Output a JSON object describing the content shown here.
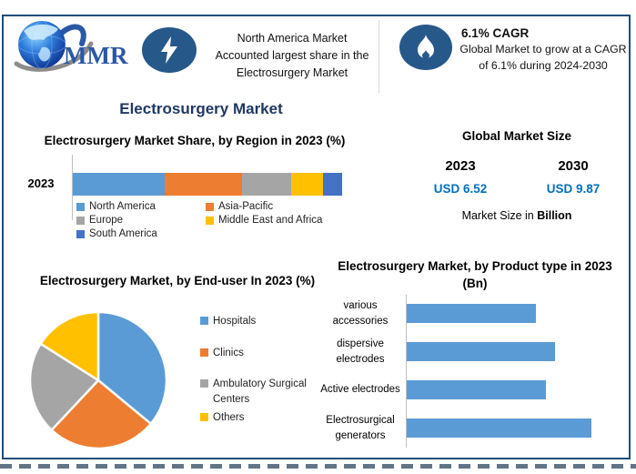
{
  "logo": {
    "text": "MMR"
  },
  "banner": {
    "highlight": {
      "lines": [
        "North America Market",
        "Accounted largest share in the",
        "Electrosurgery Market"
      ]
    },
    "cagr": {
      "title": "6.1% CAGR",
      "body": "Global Market to grow at a CAGR of 6.1% during 2024-2030"
    }
  },
  "main_title": "Electrosurgery Market",
  "market_size": {
    "title": "Global Market Size",
    "columns": [
      {
        "year": "2023",
        "value": "USD 6.52"
      },
      {
        "year": "2030",
        "value": "USD 9.87"
      }
    ],
    "note_prefix": "Market Size in ",
    "note_bold": "Billion"
  },
  "colors": {
    "frame_border": "#1F4E79",
    "title_navy": "#1F3864",
    "icon_blue": "#27588A",
    "value_blue": "#0070C0",
    "bar_blue": "#5B9BD5"
  },
  "chart_data": [
    {
      "type": "bar",
      "subtype": "stacked-horizontal",
      "title": "Electrosurgery Market Share, by Region in 2023 (%)",
      "categories": [
        "2023"
      ],
      "series": [
        {
          "name": "North America",
          "color": "#5B9BD5",
          "values": [
            34
          ]
        },
        {
          "name": "Asia-Pacific",
          "color": "#ED7D31",
          "values": [
            29
          ]
        },
        {
          "name": "Europe",
          "color": "#A5A5A5",
          "values": [
            18
          ]
        },
        {
          "name": "Middle East and Africa",
          "color": "#FFC000",
          "values": [
            12
          ]
        },
        {
          "name": "South America",
          "color": "#4472C4",
          "values": [
            7
          ]
        }
      ],
      "xlim": [
        0,
        100
      ],
      "legend_position": "bottom",
      "grid": false
    },
    {
      "type": "pie",
      "title": "Electrosurgery Market, by End-user In 2023 (%)",
      "labels": [
        "Hospitals",
        "Clinics",
        "Ambulatory Surgical Centers",
        "Others"
      ],
      "values": [
        36,
        26,
        22,
        16
      ],
      "colors": [
        "#5B9BD5",
        "#ED7D31",
        "#A5A5A5",
        "#FFC000"
      ],
      "legend_position": "right",
      "start_angle_deg": 0,
      "direction": "clockwise"
    },
    {
      "type": "bar",
      "subtype": "horizontal",
      "title": "Electrosurgery Market, by Product type in 2023 (Bn)",
      "categories": [
        "various accessories",
        "dispersive electrodes",
        "Active electrodes",
        "Electrosurgical generators"
      ],
      "values": [
        1.4,
        1.6,
        1.5,
        2.0
      ],
      "bar_color": "#5B9BD5",
      "xlim": [
        0,
        2.4
      ],
      "value_labels_visible": false,
      "grid": false
    }
  ]
}
